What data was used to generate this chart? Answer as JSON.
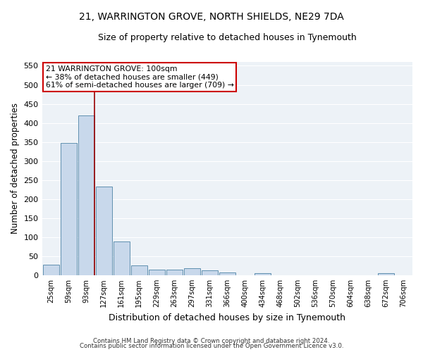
{
  "title": "21, WARRINGTON GROVE, NORTH SHIELDS, NE29 7DA",
  "subtitle": "Size of property relative to detached houses in Tynemouth",
  "xlabel": "Distribution of detached houses by size in Tynemouth",
  "ylabel": "Number of detached properties",
  "bar_color": "#c8d8eb",
  "bar_edge_color": "#6090b0",
  "background_color": "#ffffff",
  "plot_bg_color": "#edf2f7",
  "grid_color": "#ffffff",
  "vline_color": "#990000",
  "vline_x_index": 2,
  "annotation_box_text": "21 WARRINGTON GROVE: 100sqm\n← 38% of detached houses are smaller (449)\n61% of semi-detached houses are larger (709) →",
  "annotation_box_color": "#cc0000",
  "categories": [
    "25sqm",
    "59sqm",
    "93sqm",
    "127sqm",
    "161sqm",
    "195sqm",
    "229sqm",
    "263sqm",
    "297sqm",
    "331sqm",
    "366sqm",
    "400sqm",
    "434sqm",
    "468sqm",
    "502sqm",
    "536sqm",
    "570sqm",
    "604sqm",
    "638sqm",
    "672sqm",
    "706sqm"
  ],
  "values": [
    28,
    347,
    420,
    233,
    88,
    25,
    15,
    15,
    18,
    12,
    8,
    0,
    5,
    0,
    0,
    0,
    0,
    0,
    0,
    5,
    0
  ],
  "ylim": [
    0,
    560
  ],
  "yticks": [
    0,
    50,
    100,
    150,
    200,
    250,
    300,
    350,
    400,
    450,
    500,
    550
  ],
  "footer_line1": "Contains HM Land Registry data © Crown copyright and database right 2024.",
  "footer_line2": "Contains public sector information licensed under the Open Government Licence v3.0."
}
